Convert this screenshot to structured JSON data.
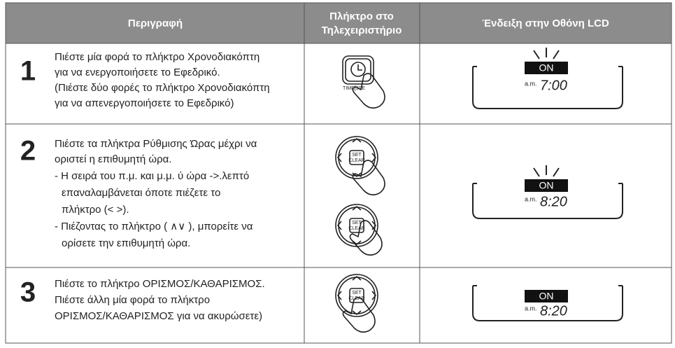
{
  "header": {
    "description": "Περιγραφή",
    "remote": [
      "Πλήκτρο στο",
      "Τηλεχειριστήριο"
    ],
    "display": "Ένδειξη στην Οθόνη LCD"
  },
  "rows": [
    {
      "number": "1",
      "lines": [
        "Πιέστε μία φορά το πλήκτρο Χρονοδιακόπτη",
        "για να ενεργοποιήσετε το Εφεδρικό.",
        "(Πιέστε δύο φορές το πλήκτρο Χρονοδιακόπτη",
        "για να απενεργοποιήσετε το Εφεδρικό)"
      ],
      "remote": [
        "TIME[3SE"
      ],
      "lcd": {
        "indicator": "ON",
        "ampm": "a.m.",
        "time": "7:00"
      }
    },
    {
      "number": "2",
      "lines": [
        "Πιέστε τα πλήκτρα Ρύθμισης Ώρας μέχρι να",
        "οριστεί η επιθυμητή ώρα.",
        "- Η σειρά του π.μ. και μ.μ. ύ ώρα ->.λεπτό",
        "επαναλαμβάνεται όποτε πιέζετε το",
        "πλήκτρο (< >).",
        "- Πιέζοντας το πλήκτρο ( ∧∨ ), μπορείτε να",
        "ορίσετε την επιθυμητή ώρα."
      ],
      "remote": [
        "SET",
        "CLEAR",
        "SET",
        "CLEAR"
      ],
      "lcd": {
        "indicator": "ON",
        "ampm": "a.m.",
        "time": "8:20"
      }
    },
    {
      "number": "3",
      "lines": [
        "Πιέστε το πλήκτρο ΟΡΙΣΜΟΣ/ΚΑΘΑΡΙΣΜΟΣ.",
        "Πιέστε άλλη μία φορά το πλήκτρο",
        "ΟΡΙΣΜΟΣ/ΚΑΘΑΡΙΣΜΟΣ για να ακυρώσετε)"
      ],
      "remote": [
        "SET",
        "CLEAR"
      ],
      "lcd": {
        "indicator": "ON",
        "ampm": "a.m.",
        "time": "8:20"
      }
    }
  ]
}
